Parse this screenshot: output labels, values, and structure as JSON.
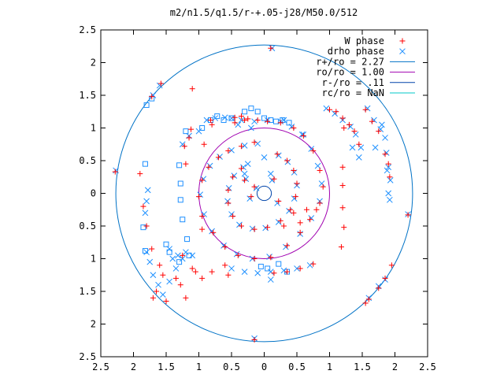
{
  "chart_data": {
    "type": "scatter",
    "title": "m2/n1.5/q1.5/r-+.05-j28/M50.0/512",
    "xlabel": "",
    "ylabel": "",
    "xlim": [
      -2.5,
      2.5
    ],
    "ylim": [
      -2.5,
      2.5
    ],
    "x_ticks": [
      -2.5,
      -2,
      -1.5,
      -1,
      -0.5,
      0,
      0.5,
      1,
      1.5,
      2,
      2.5
    ],
    "y_ticks": [
      -2.5,
      -2,
      -1.5,
      -1,
      -0.5,
      0,
      0.5,
      1,
      1.5,
      2,
      2.5
    ],
    "x_tick_labels": [
      "2.5",
      "2",
      "1.5",
      "1",
      "0.5",
      "0",
      "0.5",
      "1",
      "1.5",
      "2",
      "2.5"
    ],
    "y_tick_labels": [
      "2.5",
      "2",
      "1.5",
      "1",
      "0.5",
      "0",
      "0.5",
      "1",
      "1.5",
      "2",
      "2.5"
    ],
    "grid": false,
    "legend_position": "top-right",
    "colors": {
      "w_phase": "#ff0000",
      "drho_phase": "#1e90ff",
      "r_plus": "#0072c6",
      "r_o": "#a000b0",
      "r_minus": "#0044aa",
      "r_c": "#00c8c8"
    },
    "legend": [
      {
        "label": "W phase",
        "marker": "plus",
        "color": "#ff0000"
      },
      {
        "label": "drho phase",
        "marker": "cross",
        "color": "#1e90ff"
      },
      {
        "label": "r+/ro = 2.27",
        "marker": "line",
        "color": "#0072c6"
      },
      {
        "label": "ro/ro = 1.00",
        "marker": "line",
        "color": "#a000b0"
      },
      {
        "label": "r-/ro = .11",
        "marker": "line",
        "color": "#0044aa"
      },
      {
        "label": "rc/ro = NaN",
        "marker": "line",
        "color": "#00c8c8"
      }
    ],
    "circles": [
      {
        "name": "r+/ro",
        "radius": 2.27,
        "color": "#0072c6"
      },
      {
        "name": "ro/ro",
        "radius": 1.0,
        "color": "#a000b0"
      },
      {
        "name": "r-/ro",
        "radius": 0.11,
        "color": "#0044aa"
      }
    ],
    "series": [
      {
        "name": "W phase",
        "marker": "plus",
        "color": "#ff0000",
        "points": [
          [
            0.1,
            2.22
          ],
          [
            -0.15,
            -2.24
          ],
          [
            -2.28,
            0.33
          ],
          [
            2.2,
            -0.33
          ],
          [
            -1.58,
            1.68
          ],
          [
            -1.72,
            1.48
          ],
          [
            -1.9,
            0.3
          ],
          [
            -1.35,
            -1.3
          ],
          [
            -0.82,
            1.12
          ],
          [
            -0.8,
            1.05
          ],
          [
            -0.92,
            0.75
          ],
          [
            -1.15,
            0.85
          ],
          [
            -1.22,
            0.72
          ],
          [
            -0.95,
            -0.55
          ],
          [
            -1.05,
            -1.2
          ],
          [
            -0.95,
            -1.3
          ],
          [
            -1.28,
            -1.4
          ],
          [
            -1.2,
            -1.6
          ],
          [
            -0.45,
            1.16
          ],
          [
            -0.35,
            1.18
          ],
          [
            -0.25,
            1.14
          ],
          [
            -0.1,
            1.12
          ],
          [
            0.05,
            1.1
          ],
          [
            0.25,
            1.08
          ],
          [
            0.45,
            1.0
          ],
          [
            0.6,
            0.88
          ],
          [
            0.75,
            0.65
          ],
          [
            0.85,
            0.35
          ],
          [
            0.9,
            0.1
          ],
          [
            0.85,
            -0.15
          ],
          [
            0.7,
            -0.4
          ],
          [
            0.55,
            -0.6
          ],
          [
            0.35,
            -0.8
          ],
          [
            0.1,
            -0.98
          ],
          [
            -0.15,
            -1.0
          ],
          [
            -0.4,
            -0.95
          ],
          [
            -0.6,
            -0.82
          ],
          [
            -0.78,
            -0.6
          ],
          [
            -0.95,
            -0.35
          ],
          [
            -1.0,
            -0.05
          ],
          [
            -0.95,
            0.2
          ],
          [
            -0.85,
            0.4
          ],
          [
            -0.7,
            0.55
          ],
          [
            -0.55,
            0.65
          ],
          [
            -0.35,
            0.72
          ],
          [
            -0.15,
            0.78
          ],
          [
            0.2,
            0.6
          ],
          [
            0.35,
            0.5
          ],
          [
            0.45,
            0.35
          ],
          [
            0.5,
            0.15
          ],
          [
            0.48,
            -0.05
          ],
          [
            0.4,
            -0.25
          ],
          [
            0.25,
            -0.42
          ],
          [
            0.05,
            -0.52
          ],
          [
            -0.15,
            -0.55
          ],
          [
            -0.35,
            -0.5
          ],
          [
            -0.48,
            -0.35
          ],
          [
            -0.55,
            -0.15
          ],
          [
            -0.55,
            0.05
          ],
          [
            -0.48,
            0.25
          ],
          [
            -0.35,
            0.38
          ],
          [
            -0.15,
            0.1
          ],
          [
            -0.2,
            -0.05
          ],
          [
            -0.3,
            0.2
          ],
          [
            0.15,
            0.22
          ],
          [
            0.22,
            -0.12
          ],
          [
            0.3,
            -0.5
          ],
          [
            0.45,
            -0.3
          ],
          [
            0.55,
            -0.45
          ],
          [
            0.65,
            -0.25
          ],
          [
            0.8,
            -0.25
          ],
          [
            1.0,
            1.28
          ],
          [
            1.1,
            1.25
          ],
          [
            1.2,
            1.15
          ],
          [
            1.3,
            1.05
          ],
          [
            1.38,
            0.95
          ],
          [
            1.45,
            0.75
          ],
          [
            1.55,
            1.28
          ],
          [
            1.65,
            1.1
          ],
          [
            1.75,
            0.95
          ],
          [
            1.85,
            0.6
          ],
          [
            1.9,
            0.45
          ],
          [
            1.92,
            0.25
          ],
          [
            1.22,
            1.0
          ],
          [
            1.2,
            0.4
          ],
          [
            1.2,
            0.12
          ],
          [
            1.2,
            -0.22
          ],
          [
            1.22,
            -0.52
          ],
          [
            1.18,
            -0.82
          ],
          [
            0.75,
            -1.08
          ],
          [
            0.55,
            -1.15
          ],
          [
            0.35,
            -1.2
          ],
          [
            0.15,
            -1.22
          ],
          [
            -0.45,
            1.08
          ],
          [
            -0.3,
            1.12
          ],
          [
            -1.1,
            -1.15
          ],
          [
            -1.25,
            -0.95
          ],
          [
            1.6,
            -1.62
          ],
          [
            1.55,
            -1.68
          ],
          [
            1.75,
            -1.45
          ],
          [
            1.85,
            -1.3
          ],
          [
            1.95,
            -1.1
          ],
          [
            -1.1,
            1.6
          ],
          [
            -1.2,
            0.45
          ],
          [
            -0.8,
            -1.2
          ],
          [
            -0.6,
            -1.1
          ],
          [
            -0.55,
            -1.25
          ],
          [
            -1.55,
            -1.25
          ],
          [
            -1.6,
            -1.1
          ],
          [
            -1.72,
            -0.85
          ],
          [
            -1.8,
            -0.5
          ],
          [
            -1.85,
            -0.2
          ],
          [
            -1.7,
            -1.6
          ],
          [
            -1.5,
            -1.65
          ],
          [
            -1.65,
            -1.5
          ],
          [
            -1.12,
            0.98
          ]
        ]
      },
      {
        "name": "drho phase",
        "marker": "cross",
        "color": "#1e90ff",
        "points": [
          [
            0.12,
            2.22
          ],
          [
            -0.15,
            -2.22
          ],
          [
            -2.27,
            0.35
          ],
          [
            2.2,
            -0.32
          ],
          [
            -1.6,
            1.65
          ],
          [
            -1.7,
            1.5
          ],
          [
            -1.78,
            0.05
          ],
          [
            -1.8,
            -0.12
          ],
          [
            -1.82,
            -0.3
          ],
          [
            -1.8,
            -0.9
          ],
          [
            -1.75,
            -1.05
          ],
          [
            -1.7,
            -1.25
          ],
          [
            -1.62,
            -1.4
          ],
          [
            -1.55,
            -1.55
          ],
          [
            -1.45,
            -1.35
          ],
          [
            -1.35,
            -1.15
          ],
          [
            -1.25,
            -1.0
          ],
          [
            -1.2,
            -0.9
          ],
          [
            -0.88,
            1.12
          ],
          [
            -0.75,
            1.15
          ],
          [
            -0.6,
            1.16
          ],
          [
            -0.5,
            1.15
          ],
          [
            -0.35,
            1.12
          ],
          [
            -0.15,
            1.1
          ],
          [
            0.05,
            1.12
          ],
          [
            0.25,
            1.1
          ],
          [
            0.42,
            1.02
          ],
          [
            0.58,
            0.9
          ],
          [
            0.72,
            0.68
          ],
          [
            0.82,
            0.42
          ],
          [
            0.88,
            0.15
          ],
          [
            0.85,
            -0.12
          ],
          [
            0.72,
            -0.38
          ],
          [
            0.55,
            -0.62
          ],
          [
            0.33,
            -0.82
          ],
          [
            0.08,
            -0.97
          ],
          [
            -0.18,
            -1.0
          ],
          [
            -0.42,
            -0.93
          ],
          [
            -0.62,
            -0.8
          ],
          [
            -0.8,
            -0.58
          ],
          [
            -0.92,
            -0.32
          ],
          [
            -0.98,
            -0.02
          ],
          [
            -0.93,
            0.22
          ],
          [
            -0.83,
            0.42
          ],
          [
            -0.68,
            0.56
          ],
          [
            -0.5,
            0.66
          ],
          [
            -0.3,
            0.73
          ],
          [
            -0.1,
            0.76
          ],
          [
            0.22,
            0.58
          ],
          [
            0.36,
            0.48
          ],
          [
            0.46,
            0.32
          ],
          [
            0.5,
            0.12
          ],
          [
            0.46,
            -0.08
          ],
          [
            0.38,
            -0.27
          ],
          [
            0.22,
            -0.44
          ],
          [
            0.02,
            -0.53
          ],
          [
            -0.18,
            -0.54
          ],
          [
            -0.38,
            -0.48
          ],
          [
            -0.5,
            -0.32
          ],
          [
            -0.56,
            -0.12
          ],
          [
            -0.54,
            0.08
          ],
          [
            -0.46,
            0.27
          ],
          [
            -0.32,
            0.4
          ],
          [
            -0.12,
            0.08
          ],
          [
            -0.22,
            -0.08
          ],
          [
            -0.28,
            0.22
          ],
          [
            0.12,
            0.2
          ],
          [
            0.2,
            -0.15
          ],
          [
            -0.3,
            0.3
          ],
          [
            -0.25,
            0.45
          ],
          [
            0.0,
            0.55
          ],
          [
            0.1,
            0.3
          ],
          [
            0.95,
            1.3
          ],
          [
            1.08,
            1.22
          ],
          [
            1.2,
            1.12
          ],
          [
            1.32,
            1.02
          ],
          [
            1.4,
            0.9
          ],
          [
            1.48,
            0.7
          ],
          [
            1.58,
            1.3
          ],
          [
            1.68,
            1.12
          ],
          [
            1.78,
            0.98
          ],
          [
            1.87,
            0.62
          ],
          [
            1.9,
            0.4
          ],
          [
            1.93,
            0.2
          ],
          [
            1.8,
            1.05
          ],
          [
            1.85,
            0.85
          ],
          [
            1.35,
            0.7
          ],
          [
            1.45,
            0.55
          ],
          [
            1.7,
            0.7
          ],
          [
            1.88,
            0.35
          ],
          [
            1.9,
            0.0
          ],
          [
            1.92,
            -0.1
          ],
          [
            -0.2,
            1.0
          ],
          [
            -0.4,
            1.05
          ],
          [
            0.3,
            1.12
          ],
          [
            0.6,
            0.9
          ],
          [
            0.7,
            -1.1
          ],
          [
            0.5,
            -1.15
          ],
          [
            0.3,
            -1.18
          ],
          [
            0.1,
            -1.2
          ],
          [
            0.1,
            -1.32
          ],
          [
            -0.1,
            -1.22
          ],
          [
            -0.3,
            -1.2
          ],
          [
            -0.5,
            -1.15
          ],
          [
            1.6,
            -1.6
          ],
          [
            1.75,
            -1.42
          ],
          [
            1.85,
            -1.32
          ],
          [
            -1.0,
            0.95
          ],
          [
            -1.15,
            0.88
          ],
          [
            -1.25,
            0.75
          ],
          [
            -1.1,
            -0.95
          ],
          [
            -1.32,
            -0.95
          ],
          [
            -1.45,
            -0.85
          ],
          [
            -1.4,
            -1.0
          ]
        ]
      },
      {
        "name": "squares",
        "marker": "square",
        "color": "#1e90ff",
        "points": [
          [
            -1.82,
            0.45
          ],
          [
            -1.85,
            -0.52
          ],
          [
            -1.82,
            -0.88
          ],
          [
            -1.5,
            -0.78
          ],
          [
            -1.45,
            -0.9
          ],
          [
            -1.3,
            0.43
          ],
          [
            -1.28,
            0.15
          ],
          [
            -1.28,
            -0.1
          ],
          [
            -1.25,
            -0.4
          ],
          [
            -1.18,
            -0.7
          ],
          [
            -1.15,
            -0.95
          ],
          [
            -1.3,
            -1.05
          ],
          [
            -1.2,
            0.95
          ],
          [
            -0.95,
            1.0
          ],
          [
            -0.82,
            1.12
          ],
          [
            -0.72,
            1.18
          ],
          [
            -0.62,
            1.12
          ],
          [
            -0.5,
            1.15
          ],
          [
            -0.3,
            1.25
          ],
          [
            -0.2,
            1.3
          ],
          [
            -0.1,
            1.25
          ],
          [
            0.0,
            1.15
          ],
          [
            0.1,
            1.12
          ],
          [
            0.18,
            1.1
          ],
          [
            0.28,
            1.12
          ],
          [
            0.38,
            1.08
          ],
          [
            -1.8,
            1.35
          ],
          [
            -1.72,
            1.45
          ],
          [
            -0.05,
            -1.12
          ],
          [
            0.05,
            -1.15
          ],
          [
            0.22,
            -1.08
          ],
          [
            0.35,
            -1.2
          ]
        ]
      }
    ]
  }
}
